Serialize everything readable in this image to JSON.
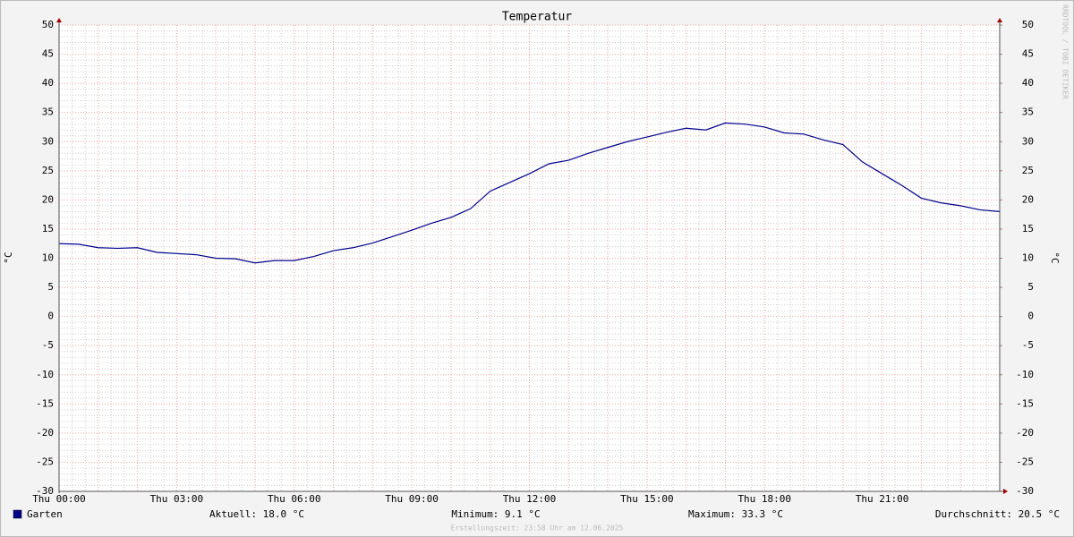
{
  "chart_data": {
    "type": "line",
    "title": "Temperatur",
    "y_label": "°C",
    "y2_label": "°C",
    "watermark": "RRDTOOL / TOBI OETIKER",
    "x": [
      0,
      0.5,
      1,
      1.5,
      2,
      2.5,
      3,
      3.5,
      4,
      4.5,
      5,
      5.5,
      6,
      6.5,
      7,
      7.5,
      8,
      8.5,
      9,
      9.5,
      10,
      10.5,
      11,
      11.5,
      12,
      12.5,
      13,
      13.5,
      14,
      14.5,
      15,
      15.5,
      16,
      16.5,
      17,
      17.5,
      18,
      18.5,
      19,
      19.5,
      20,
      20.5,
      21,
      21.5,
      22,
      22.5,
      23,
      23.5,
      24
    ],
    "series": [
      {
        "name": "Garten",
        "color": "#00008b",
        "values": [
          12.5,
          12.4,
          11.8,
          11.7,
          11.8,
          11.0,
          10.8,
          10.6,
          10.0,
          9.9,
          9.2,
          9.6,
          9.6,
          10.3,
          11.3,
          11.8,
          12.6,
          13.7,
          14.8,
          16.0,
          17.0,
          18.5,
          21.5,
          23.0,
          24.5,
          26.2,
          26.8,
          28.0,
          29.0,
          30.0,
          30.8,
          31.6,
          32.3,
          32.0,
          33.2,
          33.0,
          32.5,
          31.5,
          31.3,
          30.3,
          29.5,
          26.5,
          24.5,
          22.5,
          20.3,
          19.5,
          19.0,
          18.3,
          18.0
        ]
      }
    ],
    "xlim": [
      0,
      24
    ],
    "xticks": [
      {
        "value": 0,
        "label": "Thu 00:00"
      },
      {
        "value": 3,
        "label": "Thu 03:00"
      },
      {
        "value": 6,
        "label": "Thu 06:00"
      },
      {
        "value": 9,
        "label": "Thu 09:00"
      },
      {
        "value": 12,
        "label": "Thu 12:00"
      },
      {
        "value": 15,
        "label": "Thu 15:00"
      },
      {
        "value": 18,
        "label": "Thu 18:00"
      },
      {
        "value": 21,
        "label": "Thu 21:00"
      }
    ],
    "ylim": [
      -30,
      50
    ],
    "yticks": [
      -30,
      -25,
      -20,
      -15,
      -10,
      -5,
      0,
      5,
      10,
      15,
      20,
      25,
      30,
      35,
      40,
      45,
      50
    ],
    "y2lim": [
      -30,
      50
    ],
    "y2ticks": [
      -30,
      -25,
      -20,
      -15,
      -10,
      -5,
      0,
      5,
      10,
      15,
      20,
      25,
      30,
      35,
      40,
      45,
      50
    ],
    "grid": true,
    "stats": [
      "Aktuell: 18.0 °C",
      "Minimum: 9.1 °C",
      "Maximum: 33.3 °C",
      "Durchschnitt: 20.5 °C"
    ],
    "footer": "Erstellungszeit: 23:58 Uhr am 12.06.2025"
  }
}
